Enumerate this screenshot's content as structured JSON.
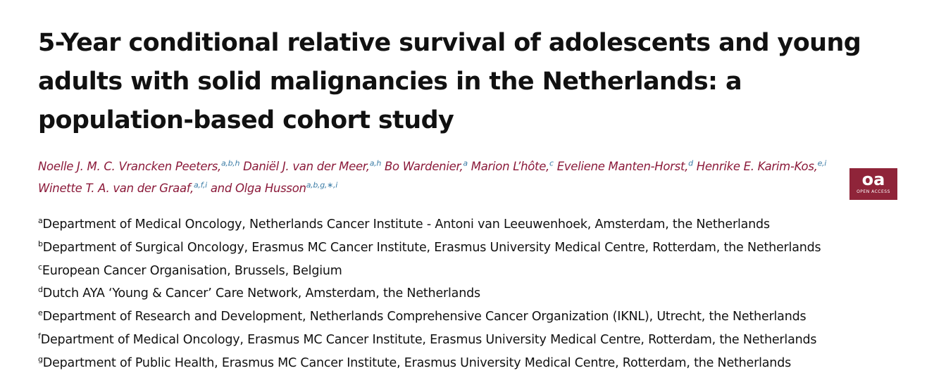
{
  "title": "5-Year conditional relative survival of adolescents and young adults with solid malignancies in the Netherlands: a population-based cohort study",
  "authors": [
    {
      "name": "Noelle J. M. C. Vrancken Peeters,",
      "aff": "a,b,h"
    },
    {
      "name": "Daniël J. van der Meer,",
      "aff": "a,h"
    },
    {
      "name": "Bo Wardenier,",
      "aff": "a"
    },
    {
      "name": "Marion L’hôte,",
      "aff": "c"
    },
    {
      "name": "Eveliene Manten-Horst,",
      "aff": "d"
    },
    {
      "name": "Henrike E. Karim-Kos,",
      "aff": "e,i"
    },
    {
      "name": "Winette T. A. van der Graaf,",
      "aff": "a,f,i"
    },
    {
      "name": "and Olga Husson",
      "aff": "a,b,g,∗,i"
    }
  ],
  "open_access": {
    "mark": "oa",
    "label": "OPEN ACCESS"
  },
  "affiliations": [
    {
      "key": "a",
      "text": "Department of Medical Oncology, Netherlands Cancer Institute - Antoni van Leeuwenhoek, Amsterdam, the Netherlands"
    },
    {
      "key": "b",
      "text": "Department of Surgical Oncology, Erasmus MC Cancer Institute, Erasmus University Medical Centre, Rotterdam, the Netherlands"
    },
    {
      "key": "c",
      "text": "European Cancer Organisation, Brussels, Belgium"
    },
    {
      "key": "d",
      "text": "Dutch AYA ‘Young & Cancer’ Care Network, Amsterdam, the Netherlands"
    },
    {
      "key": "e",
      "text": "Department of Research and Development, Netherlands Comprehensive Cancer Organization (IKNL), Utrecht, the Netherlands"
    },
    {
      "key": "f",
      "text": "Department of Medical Oncology, Erasmus MC Cancer Institute, Erasmus University Medical Centre, Rotterdam, the Netherlands"
    },
    {
      "key": "g",
      "text": "Department of Public Health, Erasmus MC Cancer Institute, Erasmus University Medical Centre, Rotterdam, the Netherlands"
    }
  ],
  "colors": {
    "author": "#8b1a3a",
    "superscript": "#3b7ca6",
    "oa_badge": "#8f2439"
  }
}
